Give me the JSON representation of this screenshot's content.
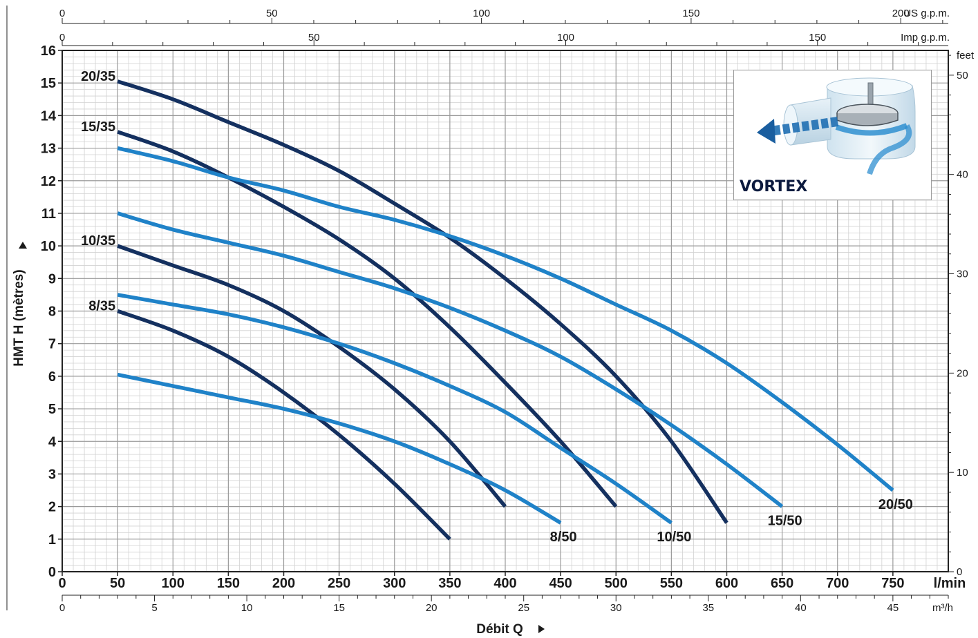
{
  "chart_data": {
    "type": "line",
    "xlabel": "Débit Q",
    "ylabel": "HMT H (mètres)",
    "xlim": [
      0,
      800
    ],
    "ylim": [
      0,
      16
    ],
    "x_unit": "l/min",
    "x_ticks": [
      0,
      50,
      100,
      150,
      200,
      250,
      300,
      350,
      400,
      450,
      500,
      550,
      600,
      650,
      700,
      750
    ],
    "y_ticks": [
      0,
      1,
      2,
      3,
      4,
      5,
      6,
      7,
      8,
      9,
      10,
      11,
      12,
      13,
      14,
      15,
      16
    ],
    "right_axis": {
      "unit": "feet",
      "ticks": [
        0,
        10,
        20,
        30,
        40,
        50
      ]
    },
    "top_axes": [
      {
        "unit": "US g.p.m.",
        "ticks": [
          0,
          50,
          100,
          150,
          200
        ]
      },
      {
        "unit": "Imp g.p.m.",
        "ticks": [
          0,
          50,
          100,
          150
        ]
      }
    ],
    "bottom_axis2": {
      "unit": "m³/h",
      "ticks": [
        0,
        5,
        10,
        15,
        20,
        25,
        30,
        35,
        40,
        45
      ]
    },
    "grid": true,
    "series": [
      {
        "name": "20/35",
        "color": "#14305f",
        "x": [
          50,
          100,
          150,
          200,
          250,
          300,
          350,
          400,
          450,
          500,
          550,
          600
        ],
        "y": [
          15.05,
          14.5,
          13.8,
          13.1,
          12.3,
          11.3,
          10.25,
          9.0,
          7.6,
          6.0,
          4.0,
          1.5
        ]
      },
      {
        "name": "15/35",
        "color": "#14305f",
        "x": [
          50,
          100,
          150,
          200,
          250,
          300,
          350,
          400,
          450,
          500
        ],
        "y": [
          13.5,
          12.9,
          12.1,
          11.2,
          10.2,
          9.0,
          7.5,
          5.8,
          4.0,
          2.0
        ]
      },
      {
        "name": "10/35",
        "color": "#14305f",
        "x": [
          50,
          100,
          150,
          200,
          250,
          300,
          350,
          400
        ],
        "y": [
          10.0,
          9.4,
          8.8,
          8.0,
          6.9,
          5.6,
          4.0,
          2.0
        ]
      },
      {
        "name": "8/35",
        "color": "#14305f",
        "x": [
          50,
          100,
          150,
          200,
          250,
          300,
          350
        ],
        "y": [
          8.0,
          7.4,
          6.6,
          5.5,
          4.2,
          2.7,
          1.0
        ]
      },
      {
        "name": "20/50",
        "color": "#1f82c8",
        "x": [
          50,
          100,
          150,
          200,
          250,
          300,
          350,
          400,
          450,
          500,
          550,
          600,
          650,
          700,
          750
        ],
        "y": [
          13.0,
          12.6,
          12.1,
          11.7,
          11.2,
          10.8,
          10.3,
          9.7,
          9.0,
          8.2,
          7.4,
          6.4,
          5.2,
          3.9,
          2.5
        ]
      },
      {
        "name": "15/50",
        "color": "#1f82c8",
        "x": [
          50,
          100,
          150,
          200,
          250,
          300,
          350,
          400,
          450,
          500,
          550,
          600,
          650
        ],
        "y": [
          11.0,
          10.5,
          10.1,
          9.7,
          9.2,
          8.7,
          8.1,
          7.4,
          6.6,
          5.6,
          4.5,
          3.3,
          2.0
        ]
      },
      {
        "name": "10/50",
        "color": "#1f82c8",
        "x": [
          50,
          100,
          150,
          200,
          250,
          300,
          350,
          400,
          450,
          500,
          550
        ],
        "y": [
          8.5,
          8.2,
          7.9,
          7.5,
          7.0,
          6.4,
          5.7,
          4.9,
          3.8,
          2.7,
          1.5
        ]
      },
      {
        "name": "8/50",
        "color": "#1f82c8",
        "x": [
          50,
          100,
          150,
          200,
          250,
          300,
          350,
          400,
          450
        ],
        "y": [
          6.05,
          5.7,
          5.35,
          5.0,
          4.55,
          4.0,
          3.3,
          2.5,
          1.5
        ]
      }
    ]
  },
  "inset": {
    "label": "VORTEX"
  }
}
